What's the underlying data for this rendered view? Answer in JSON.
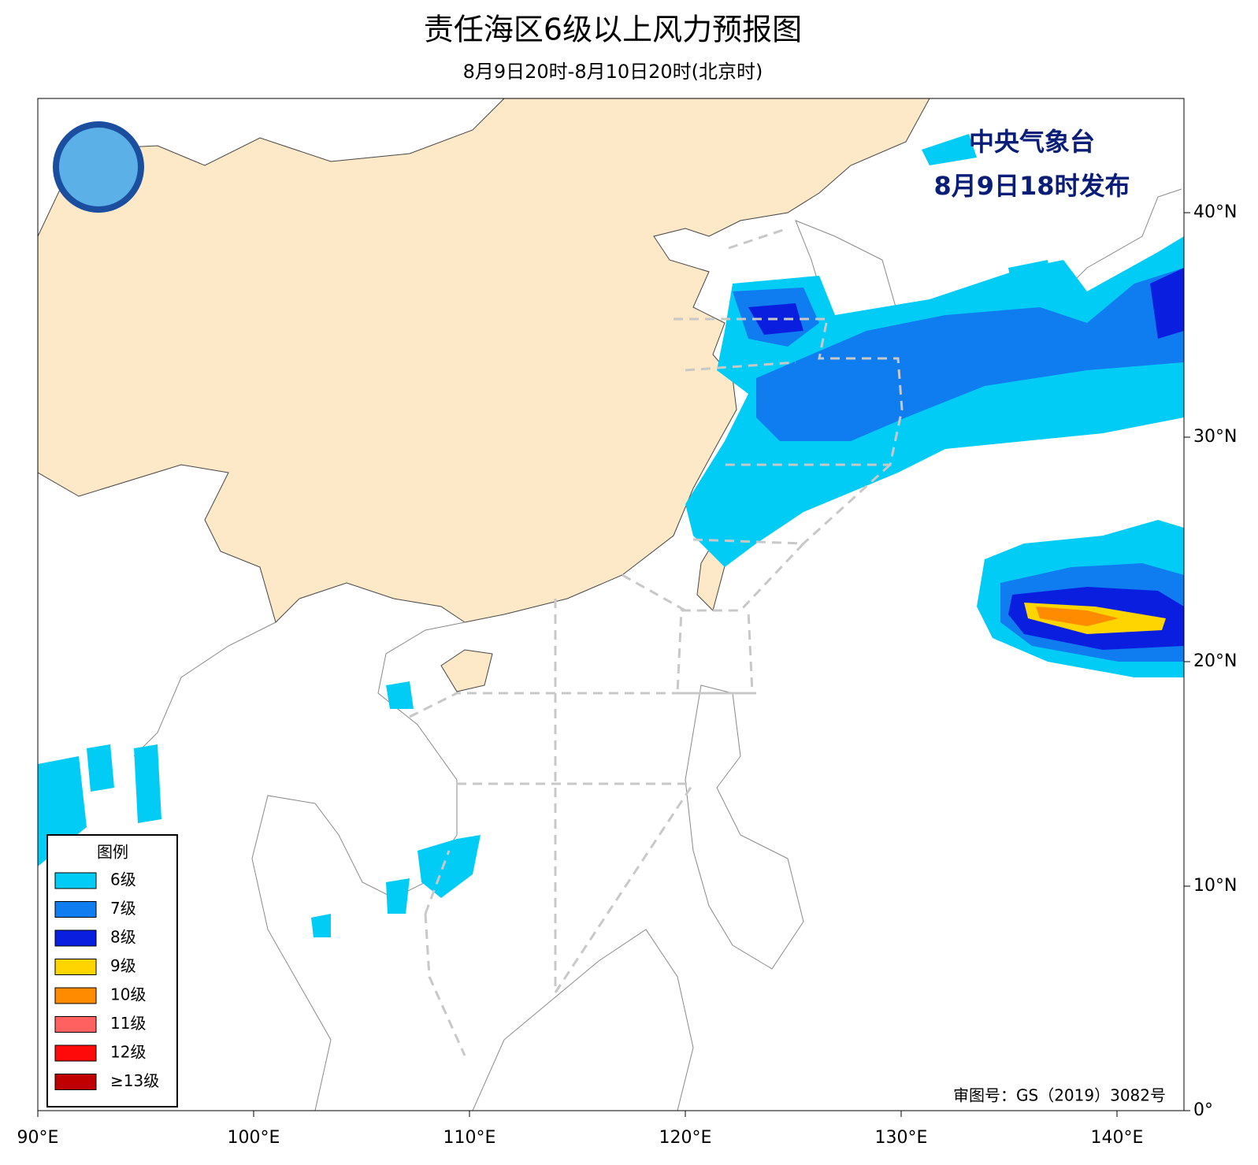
{
  "title": "责任海区6级以上风力预报图",
  "subtitle": "8月9日20时-8月10日20时(北京时)",
  "issuer": "中央气象台",
  "issue_time": "8月9日18时发布",
  "review_number": "审图号：GS（2019）3082号",
  "map": {
    "lon_ticks": [
      {
        "value": 90,
        "label": "90°E"
      },
      {
        "value": 100,
        "label": "100°E"
      },
      {
        "value": 110,
        "label": "110°E"
      },
      {
        "value": 120,
        "label": "120°E"
      },
      {
        "value": 130,
        "label": "130°E"
      },
      {
        "value": 140,
        "label": "140°E"
      }
    ],
    "lat_ticks": [
      {
        "value": 0,
        "label": "0°"
      },
      {
        "value": 10,
        "label": "10°N"
      },
      {
        "value": 20,
        "label": "20°N"
      },
      {
        "value": 30,
        "label": "30°N"
      },
      {
        "value": 40,
        "label": "40°N"
      }
    ]
  },
  "legend": {
    "title": "图例",
    "items": [
      {
        "label": "6级",
        "color": "#00ccf5"
      },
      {
        "label": "7级",
        "color": "#0f7cf0"
      },
      {
        "label": "8级",
        "color": "#0a1ee0"
      },
      {
        "label": "9级",
        "color": "#ffd500"
      },
      {
        "label": "10级",
        "color": "#ff8c00"
      },
      {
        "label": "11级",
        "color": "#ff6060"
      },
      {
        "label": "12级",
        "color": "#ff0a0a"
      },
      {
        "label": "≥13级",
        "color": "#c00000"
      }
    ]
  }
}
